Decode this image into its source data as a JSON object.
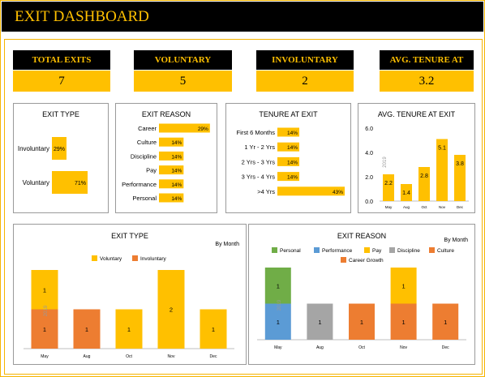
{
  "header": {
    "title": "EXIT DASHBOARD"
  },
  "kpis": [
    {
      "label": "TOTAL EXITS",
      "value": "7"
    },
    {
      "label": "VOLUNTARY",
      "value": "5"
    },
    {
      "label": "INVOLUNTARY",
      "value": "2"
    },
    {
      "label": "AVG. TENURE AT EXIT",
      "value": "3.2"
    }
  ],
  "colors": {
    "accent": "#ffc000",
    "involuntary": "#ed7d31",
    "personal": "#70ad47",
    "performance": "#5b9bd5",
    "pay": "#ffc000",
    "discipline": "#a5a5a5",
    "culture": "#ed7d31",
    "career_growth": "#ed7d31"
  },
  "chart_data": [
    {
      "type": "bar",
      "orientation": "horizontal",
      "title": "EXIT TYPE",
      "categories": [
        "Involuntary",
        "Voluntary"
      ],
      "values": [
        29,
        71
      ],
      "labels": [
        "29%",
        "71%"
      ],
      "xlim": [
        0,
        100
      ]
    },
    {
      "type": "bar",
      "orientation": "horizontal",
      "title": "EXIT REASON",
      "categories": [
        "Career",
        "Culture",
        "Discipline",
        "Pay",
        "Performance",
        "Personal"
      ],
      "values": [
        29,
        14,
        14,
        14,
        14,
        14
      ],
      "labels": [
        "29%",
        "14%",
        "14%",
        "14%",
        "14%",
        "14%"
      ],
      "xlim": [
        0,
        30
      ]
    },
    {
      "type": "bar",
      "orientation": "horizontal",
      "title": "TENURE AT EXIT",
      "categories": [
        "First 6 Months",
        "1 Yr - 2 Yrs",
        "2 Yrs - 3 Yrs",
        "3 Yrs - 4 Yrs",
        ">4 Yrs"
      ],
      "values": [
        14,
        14,
        14,
        14,
        43
      ],
      "labels": [
        "14%",
        "14%",
        "14%",
        "14%",
        "43%"
      ],
      "xlim": [
        0,
        43
      ]
    },
    {
      "type": "bar",
      "title": "AVG. TENURE AT EXIT",
      "categories": [
        "May",
        "Aug",
        "Oct",
        "Nov",
        "Dec"
      ],
      "values": [
        2.2,
        1.4,
        2.8,
        5.1,
        3.8
      ],
      "labels": [
        "2.2",
        "1.4",
        "2.8",
        "5.1",
        "3.8"
      ],
      "ylim": [
        0,
        6
      ],
      "yticks": [
        "0.0",
        "2.0",
        "4.0",
        "6.0"
      ],
      "year_label": "2019"
    },
    {
      "type": "bar",
      "stacked": true,
      "title": "EXIT TYPE",
      "subtitle": "By Month",
      "categories": [
        "May",
        "Aug",
        "Oct",
        "Nov",
        "Dec"
      ],
      "year_label": "2019",
      "ylim": [
        0,
        2
      ],
      "series": [
        {
          "name": "Involuntary",
          "color": "#ed7d31",
          "values": [
            1,
            1,
            0,
            0,
            0
          ]
        },
        {
          "name": "Voluntary",
          "color": "#ffc000",
          "values": [
            1,
            0,
            1,
            2,
            1
          ]
        }
      ],
      "legend": [
        "Voluntary",
        "Involuntary"
      ]
    },
    {
      "type": "bar",
      "stacked": true,
      "title": "EXIT REASON",
      "subtitle": "By Month",
      "categories": [
        "May",
        "Aug",
        "Oct",
        "Nov",
        "Dec"
      ],
      "year_label": "2019",
      "ylim": [
        0,
        2
      ],
      "series": [
        {
          "name": "Performance",
          "color": "#5b9bd5",
          "values": [
            1,
            0,
            0,
            0,
            0
          ]
        },
        {
          "name": "Discipline",
          "color": "#a5a5a5",
          "values": [
            0,
            1,
            0,
            0,
            0
          ]
        },
        {
          "name": "Culture",
          "color": "#ed7d31",
          "values": [
            0,
            0,
            1,
            0,
            0
          ]
        },
        {
          "name": "Career Growth",
          "color": "#ed7d31",
          "values": [
            0,
            0,
            0,
            1,
            1
          ]
        },
        {
          "name": "Pay",
          "color": "#ffc000",
          "values": [
            0,
            0,
            0,
            1,
            0
          ]
        },
        {
          "name": "Personal",
          "color": "#70ad47",
          "values": [
            1,
            0,
            0,
            0,
            0
          ]
        }
      ],
      "legend": [
        "Personal",
        "Performance",
        "Pay",
        "Discipline",
        "Culture",
        "Career Growth"
      ]
    }
  ]
}
